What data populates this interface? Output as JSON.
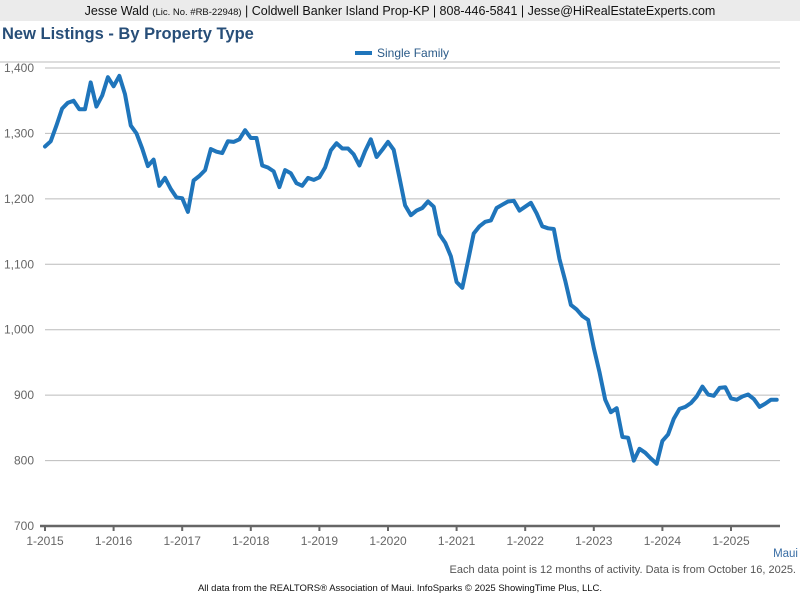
{
  "header": {
    "agent_name": "Jesse Wald",
    "license": "(Lic. No. #RB-22948)",
    "rest": "| Coldwell Banker Island Prop-KP | 808-446-5841 | Jesse@HiRealEstateExperts.com"
  },
  "region_label": "Maui",
  "note": "Each data point is 12 months of activity. Data is from October 16, 2025.",
  "footer": "All data from the REALTORS® Association of Maui. InfoSparks © 2025 ShowingTime Plus, LLC.",
  "colors": {
    "line": "#1f75bb",
    "title": "#274e78",
    "grid": "#bbbbbb",
    "axis": "#666666"
  },
  "chart_data": {
    "type": "line",
    "title": "New Listings - By Property Type",
    "xlabel": "",
    "ylabel": "",
    "ylim": [
      700,
      1400
    ],
    "yticks": [
      700,
      800,
      900,
      1000,
      1100,
      1200,
      1300,
      1400
    ],
    "ytick_labels": [
      "700",
      "800",
      "900",
      "1,000",
      "1,100",
      "1,200",
      "1,300",
      "1,400"
    ],
    "xticks": [
      "1-2015",
      "1-2016",
      "1-2017",
      "1-2018",
      "1-2019",
      "1-2020",
      "1-2021",
      "1-2022",
      "1-2023",
      "1-2024",
      "1-2025"
    ],
    "x_start": "1-2015",
    "x_interval": "month",
    "grid": true,
    "legend_position": "top-center",
    "series": [
      {
        "name": "Single Family",
        "values": [
          1280,
          1288,
          1312,
          1338,
          1347,
          1350,
          1337,
          1337,
          1378,
          1341,
          1358,
          1386,
          1372,
          1388,
          1360,
          1312,
          1300,
          1277,
          1250,
          1260,
          1220,
          1232,
          1215,
          1202,
          1201,
          1180,
          1228,
          1235,
          1244,
          1276,
          1272,
          1270,
          1288,
          1287,
          1291,
          1305,
          1293,
          1293,
          1251,
          1248,
          1242,
          1218,
          1244,
          1239,
          1224,
          1220,
          1232,
          1229,
          1233,
          1248,
          1274,
          1285,
          1277,
          1277,
          1268,
          1251,
          1273,
          1291,
          1264,
          1275,
          1287,
          1275,
          1233,
          1190,
          1175,
          1182,
          1186,
          1196,
          1188,
          1146,
          1133,
          1112,
          1073,
          1064,
          1105,
          1147,
          1158,
          1165,
          1167,
          1186,
          1191,
          1196,
          1197,
          1182,
          1188,
          1194,
          1178,
          1158,
          1155,
          1154,
          1108,
          1075,
          1038,
          1031,
          1021,
          1015,
          972,
          935,
          893,
          874,
          880,
          836,
          835,
          800,
          818,
          812,
          803,
          795,
          830,
          840,
          864,
          879,
          882,
          888,
          898,
          913,
          901,
          899,
          911,
          912,
          895,
          893,
          898,
          901,
          894,
          882,
          887,
          893,
          893
        ]
      }
    ]
  }
}
